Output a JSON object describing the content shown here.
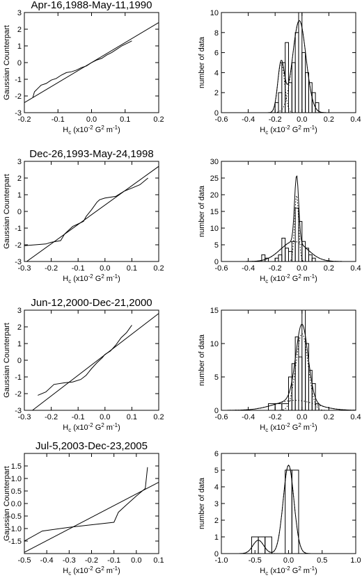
{
  "chart_data": [
    {
      "type": "line",
      "panel": "qq",
      "title": "Apr-16,1988-May-11,1990",
      "xlabel": "H",
      "xlabel_sub": "c",
      "xlabel_units": "(x10",
      "xlabel_exp1": "-2",
      "xlabel_units2": "G",
      "xlabel_exp2": "2",
      "xlabel_units3": "m",
      "xlabel_exp3": "-1",
      "xlabel_close": ")",
      "ylabel": "Gaussian Counterpart",
      "xlim": [
        -0.2,
        0.2
      ],
      "ylim": [
        -3,
        3
      ],
      "xticks": [
        -0.2,
        -0.1,
        0.0,
        0.1,
        0.2
      ],
      "xtick_labels": [
        "-0.2",
        "-0.1",
        "0.0",
        "0.1",
        "0.2"
      ],
      "yticks": [
        -3,
        -2,
        -1,
        0,
        1,
        2,
        3
      ],
      "ytick_labels": [
        "-3",
        "-2",
        "-1",
        "0",
        "1",
        "2",
        "3"
      ],
      "series": [
        {
          "role": "fit",
          "x": [
            -0.2,
            0.2
          ],
          "y": [
            -2.4,
            2.4
          ]
        },
        {
          "role": "data",
          "x": [
            -0.175,
            -0.17,
            -0.16,
            -0.15,
            -0.135,
            -0.12,
            -0.105,
            -0.09,
            -0.075,
            -0.06,
            -0.045,
            -0.03,
            -0.015,
            0.0,
            0.015,
            0.03,
            0.045,
            0.06,
            0.075,
            0.09,
            0.105,
            0.12
          ],
          "y": [
            -2.1,
            -1.75,
            -1.55,
            -1.35,
            -1.25,
            -1.05,
            -0.95,
            -0.75,
            -0.6,
            -0.55,
            -0.45,
            -0.3,
            -0.2,
            0.0,
            0.15,
            0.25,
            0.45,
            0.6,
            0.8,
            1.0,
            1.15,
            1.3
          ]
        }
      ]
    },
    {
      "type": "bar",
      "panel": "histogram",
      "xlabel": "H",
      "xlabel_sub": "c",
      "xlabel_units": "(x10",
      "xlabel_exp1": "-2",
      "xlabel_units2": "G",
      "xlabel_exp2": "2",
      "xlabel_units3": "m",
      "xlabel_exp3": "-1",
      "xlabel_close": ")",
      "ylabel": "number of data",
      "xlim": [
        -0.6,
        0.4
      ],
      "ylim": [
        0,
        10
      ],
      "xticks": [
        -0.6,
        -0.4,
        -0.2,
        0.0,
        0.2,
        0.4
      ],
      "xtick_labels": [
        "-0.6",
        "-0.4",
        "-0.2",
        "0.0",
        "0.2",
        "0.4"
      ],
      "yticks": [
        0,
        2,
        4,
        6,
        8,
        10
      ],
      "ytick_labels": [
        "0",
        "2",
        "4",
        "6",
        "8",
        "10"
      ],
      "bins": {
        "edges": [
          -0.2,
          -0.175,
          -0.15,
          -0.125,
          -0.1,
          -0.075,
          -0.05,
          -0.025,
          0.0,
          0.025,
          0.05,
          0.075,
          0.1,
          0.125,
          0.15
        ],
        "counts": [
          1,
          2,
          5,
          7,
          3,
          5,
          8,
          10,
          6,
          4,
          3,
          2,
          1,
          0
        ]
      },
      "curves": [
        {
          "role": "total",
          "style": "solid",
          "components": [
            [
              -0.155,
              0.025,
              5.0
            ],
            [
              -0.02,
              0.05,
              9.2
            ]
          ]
        },
        {
          "role": "component",
          "style": "dotted",
          "components": [
            [
              -0.155,
              0.025,
              5.0
            ]
          ]
        },
        {
          "role": "component",
          "style": "dotted",
          "components": [
            [
              -0.02,
              0.05,
              9.2
            ]
          ]
        }
      ]
    },
    {
      "type": "line",
      "panel": "qq",
      "title": "Dec-26,1993-May-24,1998",
      "xlabel": "H",
      "xlabel_sub": "c",
      "xlabel_units": "(x10",
      "xlabel_exp1": "-2",
      "xlabel_units2": "G",
      "xlabel_exp2": "2",
      "xlabel_units3": "m",
      "xlabel_exp3": "-1",
      "xlabel_close": ")",
      "ylabel": "Gaussian Counterpart",
      "xlim": [
        -0.3,
        0.2
      ],
      "ylim": [
        -3,
        3
      ],
      "xticks": [
        -0.3,
        -0.2,
        -0.1,
        0.0,
        0.1,
        0.2
      ],
      "xtick_labels": [
        "-0.3",
        "-0.2",
        "-0.1",
        "0.0",
        "0.1",
        "0.2"
      ],
      "yticks": [
        -3,
        -2,
        -1,
        0,
        1,
        2,
        3
      ],
      "ytick_labels": [
        "-3",
        "-2",
        "-1",
        "0",
        "1",
        "2",
        "3"
      ],
      "series": [
        {
          "role": "fit",
          "x": [
            -0.3,
            0.2
          ],
          "y": [
            -3.1,
            2.7
          ]
        },
        {
          "role": "data",
          "x": [
            -0.3,
            -0.22,
            -0.2,
            -0.165,
            -0.15,
            -0.14,
            -0.12,
            -0.1,
            -0.08,
            -0.07,
            -0.05,
            -0.03,
            -0.02,
            0.0,
            0.04,
            0.07,
            0.1,
            0.13,
            0.16
          ],
          "y": [
            -2.05,
            -1.95,
            -1.85,
            -1.75,
            -1.35,
            -1.2,
            -0.9,
            -0.75,
            -0.6,
            -0.3,
            0.1,
            0.55,
            0.7,
            0.8,
            0.9,
            1.2,
            1.4,
            1.6,
            2.0
          ]
        }
      ]
    },
    {
      "type": "bar",
      "panel": "histogram",
      "xlabel": "H",
      "xlabel_sub": "c",
      "xlabel_units": "(x10",
      "xlabel_exp1": "-2",
      "xlabel_units2": "G",
      "xlabel_exp2": "2",
      "xlabel_units3": "m",
      "xlabel_exp3": "-1",
      "xlabel_close": ")",
      "ylabel": "number of data",
      "xlim": [
        -0.6,
        0.4
      ],
      "ylim": [
        0,
        30
      ],
      "xticks": [
        -0.6,
        -0.4,
        -0.2,
        0.0,
        0.2,
        0.4
      ],
      "xtick_labels": [
        "-0.6",
        "-0.4",
        "-0.2",
        "0.0",
        "0.2",
        "0.4"
      ],
      "yticks": [
        0,
        5,
        10,
        15,
        20,
        25,
        30
      ],
      "ytick_labels": [
        "0",
        "5",
        "10",
        "15",
        "20",
        "25",
        "30"
      ],
      "bins": {
        "edges": [
          -0.3,
          -0.275,
          -0.25,
          -0.225,
          -0.2,
          -0.175,
          -0.15,
          -0.125,
          -0.1,
          -0.075,
          -0.05,
          -0.025,
          0.0,
          0.025,
          0.05,
          0.075,
          0.1
        ],
        "counts": [
          2,
          1,
          0,
          0,
          1,
          2,
          7,
          4,
          3,
          6,
          16,
          12,
          6,
          4,
          2,
          1
        ]
      },
      "curves": [
        {
          "role": "total",
          "style": "solid",
          "components": [
            [
              -0.04,
              0.015,
              20.0
            ],
            [
              -0.06,
              0.1,
              6.0
            ]
          ]
        },
        {
          "role": "component",
          "style": "dotted",
          "components": [
            [
              -0.04,
              0.015,
              20.0
            ]
          ]
        },
        {
          "role": "component",
          "style": "dotted",
          "components": [
            [
              -0.06,
              0.1,
              6.0
            ]
          ]
        }
      ]
    },
    {
      "type": "line",
      "panel": "qq",
      "title": "Jun-12,2000-Dec-21,2000",
      "xlabel": "H",
      "xlabel_sub": "c",
      "xlabel_units": "(x10",
      "xlabel_exp1": "-2",
      "xlabel_units2": "G",
      "xlabel_exp2": "2",
      "xlabel_units3": "m",
      "xlabel_exp3": "-1",
      "xlabel_close": ")",
      "ylabel": "Gaussian Counterpart",
      "xlim": [
        -0.3,
        0.2
      ],
      "ylim": [
        -3,
        3
      ],
      "xticks": [
        -0.3,
        -0.2,
        -0.1,
        0.0,
        0.1,
        0.2
      ],
      "xtick_labels": [
        "-0.3",
        "-0.2",
        "-0.1",
        "0.0",
        "0.1",
        "0.2"
      ],
      "yticks": [
        -3,
        -2,
        -1,
        0,
        1,
        2,
        3
      ],
      "ytick_labels": [
        "-3",
        "-2",
        "-1",
        "0",
        "1",
        "2",
        "3"
      ],
      "series": [
        {
          "role": "fit",
          "x": [
            -0.27,
            0.2
          ],
          "y": [
            -3.0,
            2.8
          ]
        },
        {
          "role": "data",
          "x": [
            -0.25,
            -0.22,
            -0.19,
            -0.15,
            -0.12,
            -0.09,
            -0.07,
            -0.05,
            -0.03,
            -0.01,
            0.0,
            0.02,
            0.04,
            0.06,
            0.08,
            0.1
          ],
          "y": [
            -2.1,
            -1.9,
            -1.45,
            -1.35,
            -1.3,
            -1.15,
            -0.9,
            -0.5,
            -0.15,
            0.15,
            0.35,
            0.55,
            0.9,
            1.35,
            1.65,
            2.1
          ]
        }
      ]
    },
    {
      "type": "bar",
      "panel": "histogram",
      "xlabel": "H",
      "xlabel_sub": "c",
      "xlabel_units": "(x10",
      "xlabel_exp1": "-2",
      "xlabel_units2": "G",
      "xlabel_exp2": "2",
      "xlabel_units3": "m",
      "xlabel_exp3": "-1",
      "xlabel_close": ")",
      "ylabel": "number of data",
      "xlim": [
        -0.6,
        0.4
      ],
      "ylim": [
        0,
        15
      ],
      "xticks": [
        -0.6,
        -0.4,
        -0.2,
        0.0,
        0.2,
        0.4
      ],
      "xtick_labels": [
        "-0.6",
        "-0.4",
        "-0.2",
        "0.0",
        "0.2",
        "0.4"
      ],
      "yticks": [
        0,
        5,
        10,
        15
      ],
      "ytick_labels": [
        "0",
        "5",
        "10",
        "15"
      ],
      "bins": {
        "edges": [
          -0.25,
          -0.2,
          -0.15,
          -0.1,
          -0.075,
          -0.05,
          -0.025,
          0.0,
          0.025,
          0.05,
          0.075,
          0.1,
          0.125
        ],
        "counts": [
          1,
          1,
          1,
          5,
          7,
          11,
          8,
          16,
          10,
          6,
          4,
          1
        ]
      },
      "curves": [
        {
          "role": "total",
          "style": "solid",
          "components": [
            [
              0.0,
              0.045,
              11.5
            ],
            [
              -0.05,
              0.15,
              1.5
            ]
          ]
        },
        {
          "role": "component",
          "style": "dotted",
          "components": [
            [
              0.0,
              0.045,
              11.5
            ]
          ]
        },
        {
          "role": "component",
          "style": "dotted",
          "components": [
            [
              -0.05,
              0.15,
              1.5
            ]
          ]
        }
      ]
    },
    {
      "type": "line",
      "panel": "qq",
      "title": "Jul-5,2003-Dec-23,2005",
      "xlabel": "H",
      "xlabel_sub": "c",
      "xlabel_units": "(x10",
      "xlabel_exp1": "-2",
      "xlabel_units2": "G",
      "xlabel_exp2": "2",
      "xlabel_units3": "m",
      "xlabel_exp3": "-1",
      "xlabel_close": ")",
      "ylabel": "Gaussian Counterpart",
      "xlim": [
        -0.5,
        0.1
      ],
      "ylim": [
        -2,
        2
      ],
      "xticks": [
        -0.5,
        -0.4,
        -0.3,
        -0.2,
        -0.1,
        0.0,
        0.1
      ],
      "xtick_labels": [
        "-0.5",
        "-0.4",
        "-0.3",
        "-0.2",
        "-0.1",
        "0.0",
        "0.1"
      ],
      "yticks": [
        -2,
        -1.5,
        -1,
        -0.5,
        0,
        0.5,
        1,
        1.5,
        2
      ],
      "ytick_labels": [
        "",
        "-1.5",
        "-1.0",
        "-0.5",
        "0.0",
        "0.5",
        "1.0",
        "1.5",
        ""
      ],
      "series": [
        {
          "role": "fit",
          "x": [
            -0.5,
            0.1
          ],
          "y": [
            -1.95,
            0.85
          ]
        },
        {
          "role": "data",
          "x": [
            -0.5,
            -0.42,
            -0.3,
            -0.1,
            -0.08,
            -0.05,
            0.0,
            0.02,
            0.04,
            0.05
          ],
          "y": [
            -1.5,
            -1.1,
            -0.95,
            -0.75,
            -0.35,
            -0.1,
            0.3,
            0.45,
            0.6,
            1.45
          ]
        }
      ]
    },
    {
      "type": "bar",
      "panel": "histogram",
      "xlabel": "H",
      "xlabel_sub": "c",
      "xlabel_units": "(x10",
      "xlabel_exp1": "-2",
      "xlabel_units2": "G",
      "xlabel_exp2": "2",
      "xlabel_units3": "m",
      "xlabel_exp3": "-1",
      "xlabel_close": ")",
      "ylabel": "number of data",
      "xlim": [
        -1.0,
        1.0
      ],
      "ylim": [
        0,
        6
      ],
      "xticks": [
        -1.0,
        -0.5,
        0.0,
        0.5,
        1.0
      ],
      "xtick_labels": [
        "-1.0",
        "-0.5",
        "0.0",
        "0.5",
        "1.0"
      ],
      "yticks": [
        0,
        1,
        2,
        3,
        4,
        5,
        6
      ],
      "ytick_labels": [
        "0",
        "1",
        "2",
        "3",
        "4",
        "5",
        "6"
      ],
      "bins": {
        "edges": [
          -0.55,
          -0.45,
          -0.35,
          -0.25,
          -0.15,
          -0.05,
          0.05,
          0.15
        ],
        "counts": [
          1,
          1,
          1,
          0,
          0,
          5,
          5
        ]
      },
      "curves": [
        {
          "role": "total",
          "style": "solid",
          "components": [
            [
              -0.45,
              0.08,
              0.8
            ],
            [
              0.0,
              0.08,
              5.3
            ]
          ]
        },
        {
          "role": "component",
          "style": "dotted",
          "components": [
            [
              -0.45,
              0.08,
              0.8
            ]
          ]
        },
        {
          "role": "component",
          "style": "dotted",
          "components": [
            [
              0.0,
              0.08,
              5.3
            ]
          ]
        }
      ]
    }
  ]
}
